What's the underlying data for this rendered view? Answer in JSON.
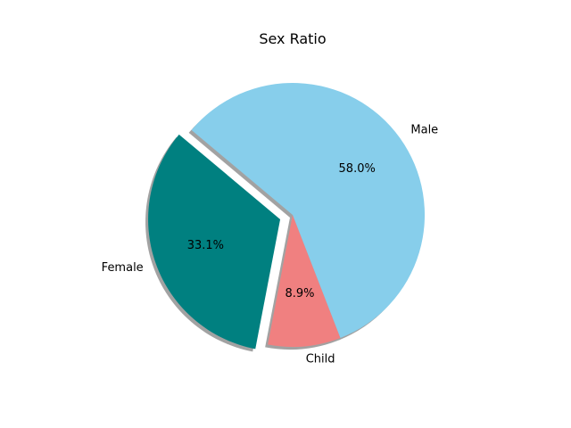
{
  "chart_data": {
    "type": "pie",
    "title": "Sex Ratio",
    "slices": [
      {
        "label": "Female",
        "value": 33.1,
        "pct_label": "33.1%",
        "color": "#008080",
        "explode": 0.1
      },
      {
        "label": "Child",
        "value": 8.9,
        "pct_label": "8.9%",
        "color": "#f08080",
        "explode": 0
      },
      {
        "label": "Male",
        "value": 58.0,
        "pct_label": "58.0%",
        "color": "#87ceeb",
        "explode": 0
      }
    ],
    "start_angle": 140,
    "shadow": true,
    "legend": "none"
  }
}
